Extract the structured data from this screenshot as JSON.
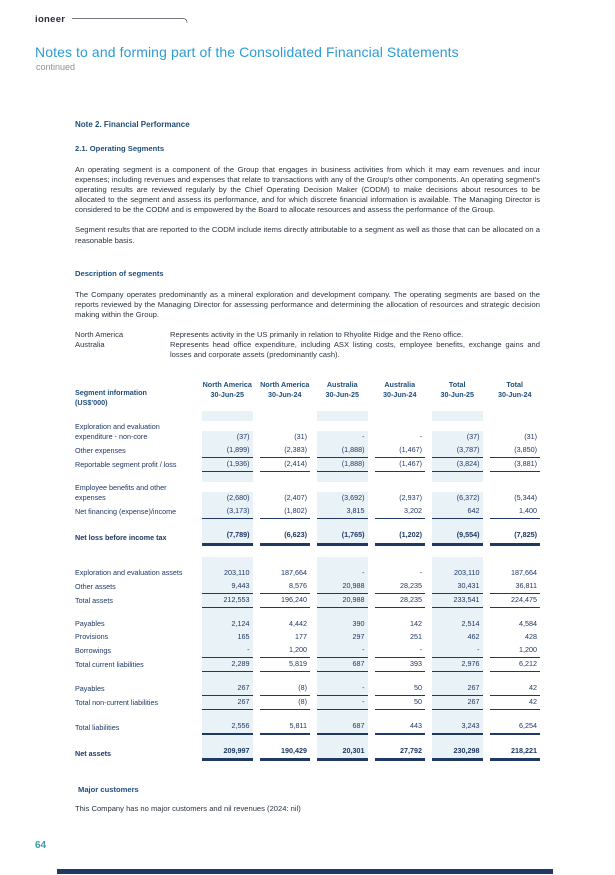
{
  "page": {
    "logo": "ioneer",
    "title": "Notes to and forming part of the Consolidated Financial Statements",
    "subtitle": "continued",
    "page_number": "64"
  },
  "note": {
    "heading": "Note 2. Financial Performance",
    "subheading": "2.1. Operating Segments",
    "para1": "An operating segment is a component of the Group that engages in business activities from which it may earn revenues and incur expenses; including revenues and expenses that relate to transactions with any of the Group's other components. An operating segment's operating results are reviewed regularly by the Chief Operating Decision Maker (CODM) to make decisions about resources to be allocated to the segment and assess its performance, and for which discrete financial information is available. The Managing Director is considered to be the CODM and is empowered by the Board to allocate resources and assess the performance of the Group.",
    "para2": "Segment results that are reported to the CODM include items directly attributable to a segment as well as those that can be allocated on a reasonable basis.",
    "description_heading": "Description of segments",
    "para3": "The Company operates predominantly as a mineral exploration and development company. The operating segments are based on the reports reviewed by the Managing Director for assessing performance and determining the allocation of resources and strategic decision making within the Group.",
    "segments": [
      {
        "name": "North America",
        "description": "Represents activity in the US primarily in relation to Rhyolite Ridge and the Reno office."
      },
      {
        "name": "Australia",
        "description": "Represents head office expenditure, including ASX listing costs, employee benefits, exchange gains and losses and corporate assets (predominantly cash)."
      }
    ]
  },
  "table": {
    "label_header_line1": "Segment information",
    "label_header_line2": "(US$'000)",
    "shaded_columns": [
      0,
      2,
      4
    ],
    "columns": [
      {
        "region": "North America",
        "date": "30-Jun-25"
      },
      {
        "region": "North America",
        "date": "30-Jun-24"
      },
      {
        "region": "Australia",
        "date": "30-Jun-25"
      },
      {
        "region": "Australia",
        "date": "30-Jun-24"
      },
      {
        "region": "Total",
        "date": "30-Jun-25"
      },
      {
        "region": "Total",
        "date": "30-Jun-24"
      }
    ],
    "sections": {
      "pnl": {
        "rows": [
          {
            "type": "spacer"
          },
          {
            "type": "plain",
            "label": "Exploration and evaluation expenditure - non-core",
            "values": [
              "(37)",
              "(31)",
              "-",
              "-",
              "(37)",
              "(31)"
            ]
          },
          {
            "type": "underline",
            "label": "Other expenses",
            "values": [
              "(1,899)",
              "(2,383)",
              "(1,888)",
              "(1,467)",
              "(3,787)",
              "(3,850)"
            ]
          },
          {
            "type": "underline",
            "label": "Reportable segment profit / loss",
            "values": [
              "(1,936)",
              "(2,414)",
              "(1,888)",
              "(1,467)",
              "(3,824)",
              "(3,881)"
            ]
          },
          {
            "type": "spacer"
          },
          {
            "type": "plain",
            "label": "Employee benefits and other expenses",
            "values": [
              "(2,680)",
              "(2,407)",
              "(3,692)",
              "(2,937)",
              "(6,372)",
              "(5,344)"
            ]
          },
          {
            "type": "underline",
            "label": "Net financing (expense)/income",
            "values": [
              "(3,173)",
              "(1,802)",
              "3,815",
              "3,202",
              "642",
              "1,400"
            ]
          },
          {
            "type": "spacer"
          },
          {
            "type": "grand",
            "bold": true,
            "label": "Net loss before income tax",
            "values": [
              "(7,789)",
              "(6,623)",
              "(1,765)",
              "(1,202)",
              "(9,554)",
              "(7,825)"
            ]
          }
        ]
      },
      "bs": {
        "rows": [
          {
            "type": "spacer"
          },
          {
            "type": "plain",
            "label": "Exploration and evaluation assets",
            "values": [
              "203,110",
              "187,664",
              "-",
              "-",
              "203,110",
              "187,664"
            ]
          },
          {
            "type": "underline",
            "label": "Other assets",
            "values": [
              "9,443",
              "8,576",
              "20,988",
              "28,235",
              "30,431",
              "36,811"
            ]
          },
          {
            "type": "underline",
            "label": "Total assets",
            "values": [
              "212,553",
              "196,240",
              "20,988",
              "28,235",
              "233,541",
              "224,475"
            ]
          },
          {
            "type": "spacer"
          },
          {
            "type": "plain",
            "label": "Payables",
            "values": [
              "2,124",
              "4,442",
              "390",
              "142",
              "2,514",
              "4,584"
            ]
          },
          {
            "type": "plain",
            "label": "Provisions",
            "values": [
              "165",
              "177",
              "297",
              "251",
              "462",
              "428"
            ]
          },
          {
            "type": "underline",
            "label": "Borrowings",
            "values": [
              "-",
              "1,200",
              "-",
              "-",
              "-",
              "1,200"
            ]
          },
          {
            "type": "underline",
            "label": "Total current liabilities",
            "values": [
              "2,289",
              "5,819",
              "687",
              "393",
              "2,976",
              "6,212"
            ]
          },
          {
            "type": "spacer"
          },
          {
            "type": "underline",
            "label": "Payables",
            "values": [
              "267",
              "(8)",
              "-",
              "50",
              "267",
              "42"
            ]
          },
          {
            "type": "underline",
            "label": "Total non-current liabilities",
            "values": [
              "267",
              "(8)",
              "-",
              "50",
              "267",
              "42"
            ]
          },
          {
            "type": "spacer"
          },
          {
            "type": "strong",
            "label": "Total liabilities",
            "values": [
              "2,556",
              "5,811",
              "687",
              "443",
              "3,243",
              "6,254"
            ]
          },
          {
            "type": "spacer"
          },
          {
            "type": "grand",
            "bold": true,
            "label": "Net assets",
            "values": [
              "209,997",
              "190,429",
              "20,301",
              "27,792",
              "230,298",
              "218,221"
            ]
          }
        ]
      }
    }
  },
  "major_customers": {
    "heading": "Major customers",
    "text": "This Company has no major customers and nil revenues (2024: nil)"
  },
  "colors": {
    "title_blue": "#2e9bd5",
    "heading_navy": "#1f4e79",
    "table_navy": "#1f3864",
    "shaded_column": "#e9f2f6",
    "page_number_teal": "#3f98aa"
  }
}
